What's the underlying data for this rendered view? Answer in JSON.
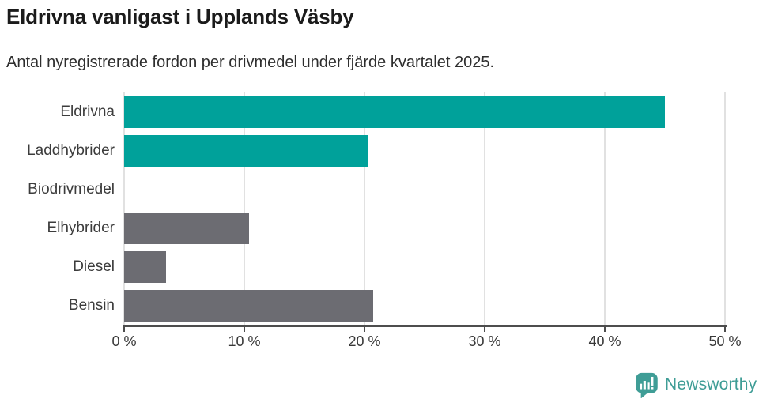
{
  "header": {
    "title": "Eldrivna vanligast i Upplands Väsby",
    "subtitle": "Antal nyregistrerade fordon per drivmedel under fjärde kvartalet 2025."
  },
  "chart_data": {
    "type": "bar",
    "orientation": "horizontal",
    "title": "Eldrivna vanligast i Upplands Väsby",
    "subtitle": "Antal nyregistrerade fordon per drivmedel under fjärde kvartalet 2025.",
    "categories": [
      "Eldrivna",
      "Laddhybrider",
      "Biodrivmedel",
      "Elhybrider",
      "Diesel",
      "Bensin"
    ],
    "values": [
      45.0,
      20.3,
      0,
      10.4,
      3.5,
      20.7
    ],
    "unit": "%",
    "bar_colors": [
      "#00A19A",
      "#00A19A",
      "#6C6C72",
      "#6C6C72",
      "#6C6C72",
      "#6C6C72"
    ],
    "xlim": [
      0,
      50
    ],
    "x_ticks": [
      0,
      10,
      20,
      30,
      40,
      50
    ],
    "x_tick_labels": [
      "0 %",
      "10 %",
      "20 %",
      "30 %",
      "40 %",
      "50 %"
    ],
    "grid": true,
    "legend": false
  },
  "colors": {
    "highlight": "#00A19A",
    "neutral": "#6C6C72",
    "gridline": "#e1e1e1",
    "axis": "#4d4d4d",
    "logo": "#3F9D96"
  },
  "branding": {
    "logo_text": "Newsworthy",
    "logo_icon": "newsworthy-speech-bubble-chart-icon"
  }
}
